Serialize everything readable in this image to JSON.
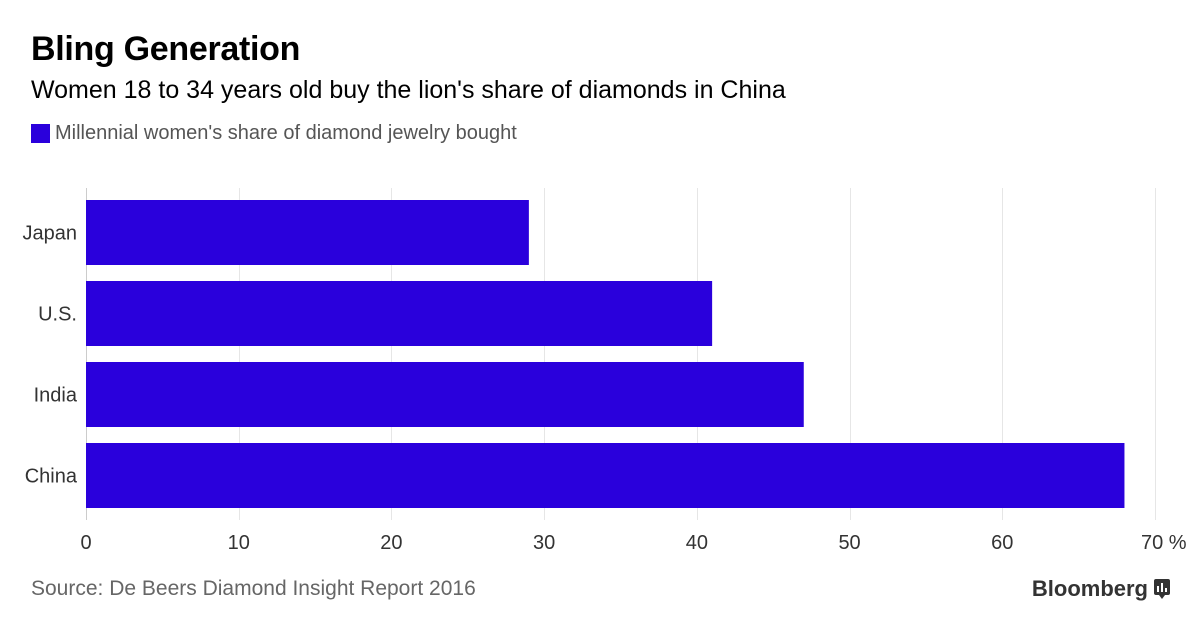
{
  "header": {
    "title": "Bling Generation",
    "subtitle": "Women 18 to 34 years old buy the lion's share of diamonds in China"
  },
  "footer": {
    "source": "Source: De Beers Diamond Insight Report 2016",
    "brand": "Bloomberg",
    "brand_icon": "bloomberg-terminal-icon"
  },
  "colors": {
    "bar": "#2a00dc",
    "grid": "#e6e6e6",
    "axis": "#cccccc",
    "tick_text": "#333333",
    "category_text": "#333333"
  },
  "chart_data": {
    "type": "bar",
    "orientation": "horizontal",
    "title": "Bling Generation",
    "subtitle": "Women 18 to 34 years old buy the lion's share of diamonds in China",
    "categories": [
      "Japan",
      "U.S.",
      "India",
      "China"
    ],
    "series": [
      {
        "name": "Millennial women's share of diamond jewelry bought",
        "values": [
          29,
          41,
          47,
          68
        ]
      }
    ],
    "xlim": [
      0,
      70
    ],
    "xticks": [
      0,
      10,
      20,
      30,
      40,
      50,
      60,
      70
    ],
    "tick_labels": [
      "0",
      "10",
      "20",
      "30",
      "40",
      "50",
      "60",
      "70 %"
    ],
    "xlabel": "",
    "ylabel": "",
    "grid": true,
    "legend_position": "top-left"
  }
}
